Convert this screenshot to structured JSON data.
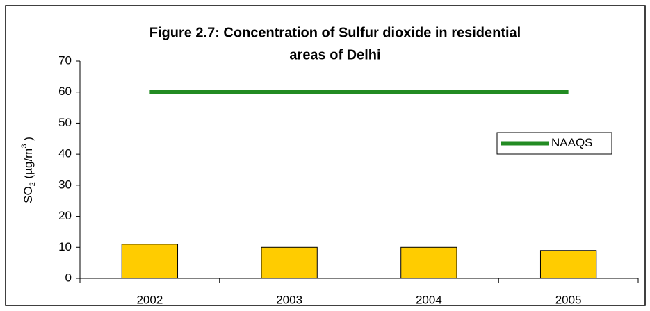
{
  "chart_data": {
    "type": "bar",
    "title": [
      "Figure 2.7: Concentration of Sulfur dioxide in residential",
      "areas  of Delhi"
    ],
    "y_label": [
      "SO",
      "2",
      " (µg/m",
      "3",
      " )"
    ],
    "categories": [
      "2002",
      "2003",
      "2004",
      "2005"
    ],
    "series": [
      {
        "type": "bar",
        "color": "#ffcc00",
        "values": [
          11,
          10,
          10,
          9
        ]
      },
      {
        "type": "line",
        "name": "NAAQS",
        "color": "#228b22",
        "values": [
          60,
          60,
          60,
          60
        ]
      }
    ],
    "ylim": [
      0,
      70
    ],
    "yticks": [
      0,
      10,
      20,
      30,
      40,
      50,
      60,
      70
    ],
    "grid": false,
    "legend": "right"
  }
}
